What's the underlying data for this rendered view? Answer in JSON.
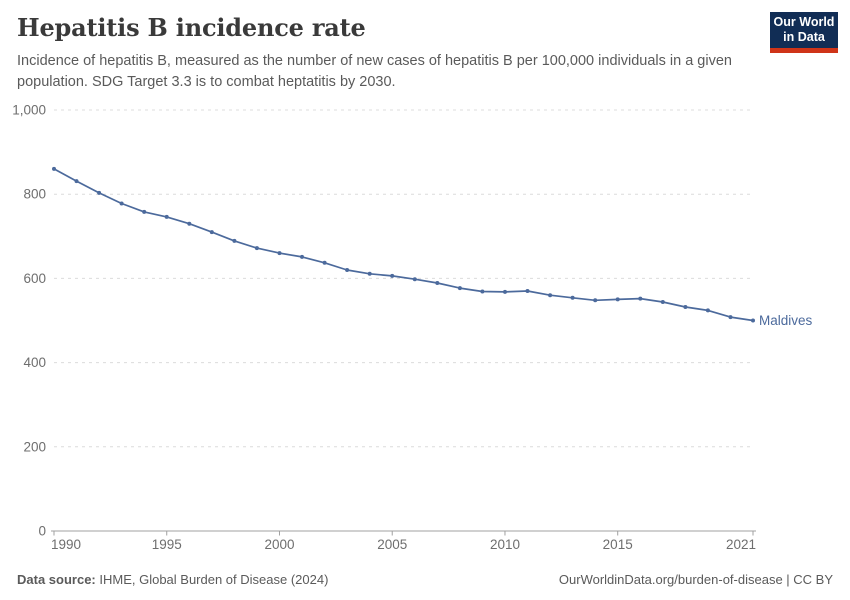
{
  "header": {
    "title": "Hepatitis B incidence rate",
    "subtitle": "Incidence of hepatitis B, measured as the number of new cases of hepatitis B per 100,000 individuals in a given population. SDG Target 3.3 is to combat heptatitis by 2030.",
    "logo": {
      "line1": "Our World",
      "line2": "in Data",
      "bg_color": "#112d55",
      "bar_color": "#cf3418",
      "text_color": "#ffffff"
    }
  },
  "chart_data": {
    "type": "line",
    "title": "Hepatitis B incidence rate",
    "xlabel": "",
    "ylabel": "",
    "x": [
      1990,
      1991,
      1992,
      1993,
      1994,
      1995,
      1996,
      1997,
      1998,
      1999,
      2000,
      2001,
      2002,
      2003,
      2004,
      2005,
      2006,
      2007,
      2008,
      2009,
      2010,
      2011,
      2012,
      2013,
      2014,
      2015,
      2016,
      2017,
      2018,
      2019,
      2020,
      2021
    ],
    "series": [
      {
        "name": "Maldives",
        "color": "#4c6a9c",
        "values": [
          860,
          831,
          803,
          778,
          758,
          746,
          730,
          710,
          689,
          672,
          660,
          651,
          637,
          620,
          611,
          606,
          598,
          589,
          577,
          569,
          568,
          570,
          560,
          554,
          548,
          550,
          552,
          544,
          532,
          524,
          508,
          500
        ]
      }
    ],
    "ylim": [
      0,
      1000
    ],
    "yticks": [
      0,
      200,
      400,
      600,
      800,
      1000
    ],
    "ytick_labels": [
      "0",
      "200",
      "400",
      "600",
      "800",
      "1,000"
    ],
    "xticks": [
      1990,
      1995,
      2000,
      2005,
      2010,
      2015,
      2021
    ],
    "grid": "horizontal-dashed",
    "legend_position": "end-of-line-label",
    "end_label": "Maldives"
  },
  "chart_style": {
    "gridline_color": "#dcdcdc",
    "axis_color": "#a0a0a0",
    "tick_label_color": "#6e6e6e"
  },
  "footer": {
    "datasource_label": "Data source:",
    "datasource_value": " IHME, Global Burden of Disease (2024)",
    "right_text": "OurWorldinData.org/burden-of-disease | CC BY"
  }
}
